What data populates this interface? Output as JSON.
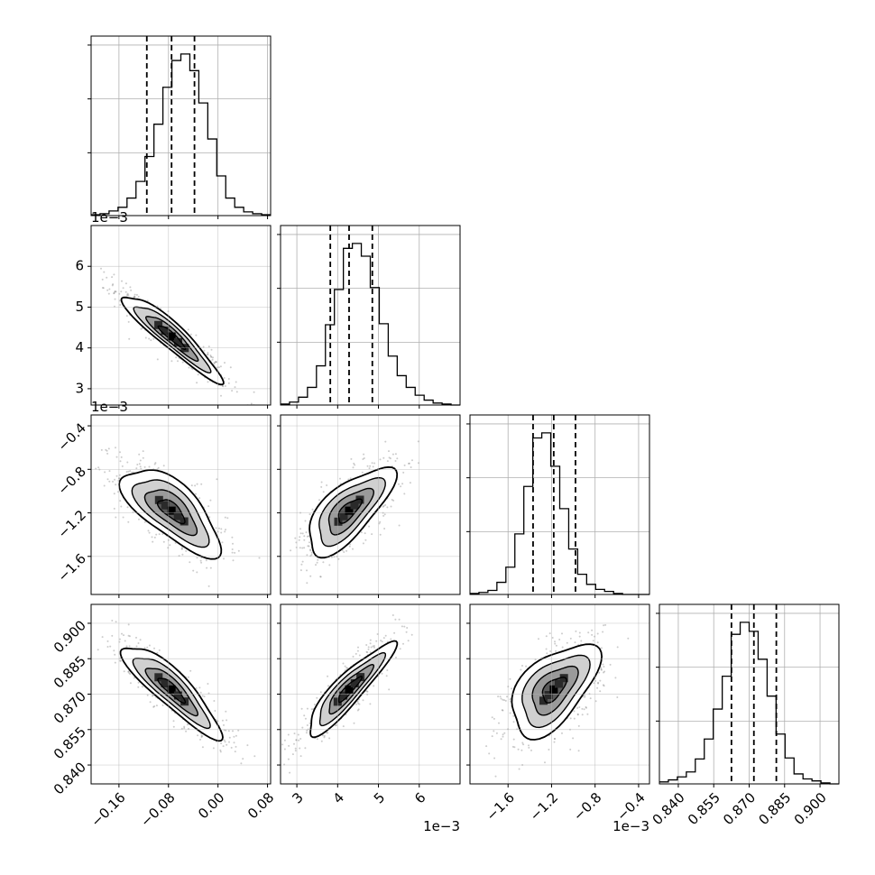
{
  "chart_data": {
    "type": "corner",
    "grid": true,
    "quantiles": [
      0.16,
      0.5,
      0.84
    ],
    "parameters": [
      {
        "id": "p0",
        "range": [
          -0.205,
          0.085
        ],
        "ticks": [
          -0.16,
          -0.08,
          0.0,
          0.08
        ],
        "tick_labels": [
          "−0.16",
          "−0.08",
          "0.00",
          "0.08"
        ],
        "multiplier": "",
        "quantile_values": [
          -0.115,
          -0.075,
          -0.038
        ],
        "histogram": [
          1,
          2,
          5,
          9,
          19,
          37,
          64,
          99,
          139,
          168,
          175,
          157,
          122,
          83,
          43,
          19,
          9,
          4,
          2,
          1
        ]
      },
      {
        "id": "p1",
        "range": [
          2.6,
          7.0
        ],
        "ticks": [
          3,
          4,
          5,
          6
        ],
        "tick_labels": [
          "3",
          "4",
          "5",
          "6"
        ],
        "multiplier": "1e−3",
        "quantile_values": [
          3.82,
          4.28,
          4.85
        ],
        "histogram": [
          1,
          3,
          8,
          18,
          40,
          82,
          118,
          160,
          165,
          152,
          120,
          83,
          50,
          30,
          18,
          10,
          5,
          2,
          1,
          0
        ]
      },
      {
        "id": "p2",
        "range": [
          -1.95,
          -0.3
        ],
        "ticks": [
          -1.6,
          -1.2,
          -0.8,
          -0.4
        ],
        "tick_labels": [
          "−1.6",
          "−1.2",
          "−0.8",
          "−0.4"
        ],
        "multiplier": "1e−3",
        "quantile_values": [
          -1.37,
          -1.18,
          -0.98
        ],
        "histogram": [
          1,
          2,
          4,
          12,
          27,
          60,
          107,
          155,
          160,
          127,
          85,
          45,
          20,
          10,
          5,
          3,
          1,
          0,
          0,
          0
        ]
      },
      {
        "id": "p3",
        "range": [
          0.832,
          0.908
        ],
        "ticks": [
          0.84,
          0.855,
          0.87,
          0.885,
          0.9
        ],
        "tick_labels": [
          "0.840",
          "0.855",
          "0.870",
          "0.885",
          "0.900"
        ],
        "multiplier": "",
        "quantile_values": [
          0.8625,
          0.872,
          0.8815
        ],
        "histogram": [
          2,
          4,
          7,
          12,
          25,
          45,
          75,
          108,
          150,
          162,
          153,
          125,
          88,
          50,
          26,
          10,
          5,
          3,
          1,
          0
        ]
      }
    ],
    "correlations": [
      [
        1,
        -0.93,
        -0.7,
        -0.88
      ],
      [
        -0.93,
        1,
        0.7,
        0.9
      ],
      [
        -0.7,
        0.7,
        1,
        0.55
      ],
      [
        -0.88,
        0.9,
        0.55,
        1
      ]
    ]
  }
}
